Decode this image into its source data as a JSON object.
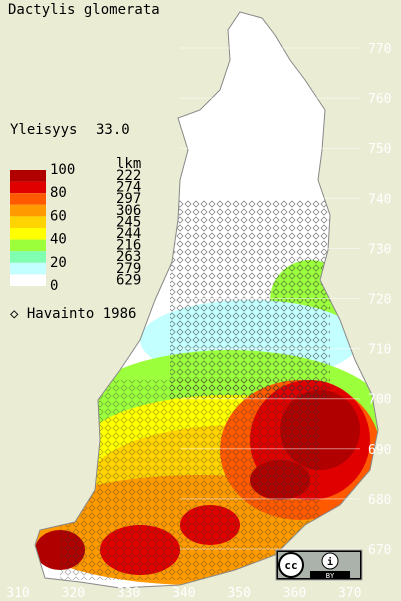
{
  "title": "Dactylis glomerata",
  "frequency": {
    "label": "Yleisyys",
    "value": "33.0"
  },
  "legend": {
    "header": "lkm",
    "scale_labels": [
      "100",
      "80",
      "60",
      "40",
      "20",
      "0"
    ],
    "colors": [
      "#b00000",
      "#e00000",
      "#ff5a00",
      "#ff9a00",
      "#ffd400",
      "#ffff00",
      "#9cff3c",
      "#80ffb0",
      "#c4ffff",
      "#ffffff"
    ],
    "counts": [
      "222",
      "274",
      "297",
      "306",
      "245",
      "244",
      "216",
      "263",
      "279",
      "629"
    ]
  },
  "observation": {
    "label": "Havainto 1986"
  },
  "map": {
    "yticks": [
      770,
      760,
      750,
      740,
      730,
      720,
      710,
      700,
      690,
      680,
      670
    ],
    "xticks": [
      310,
      320,
      330,
      340,
      350,
      360,
      370
    ]
  },
  "license": {
    "label": "BY"
  }
}
